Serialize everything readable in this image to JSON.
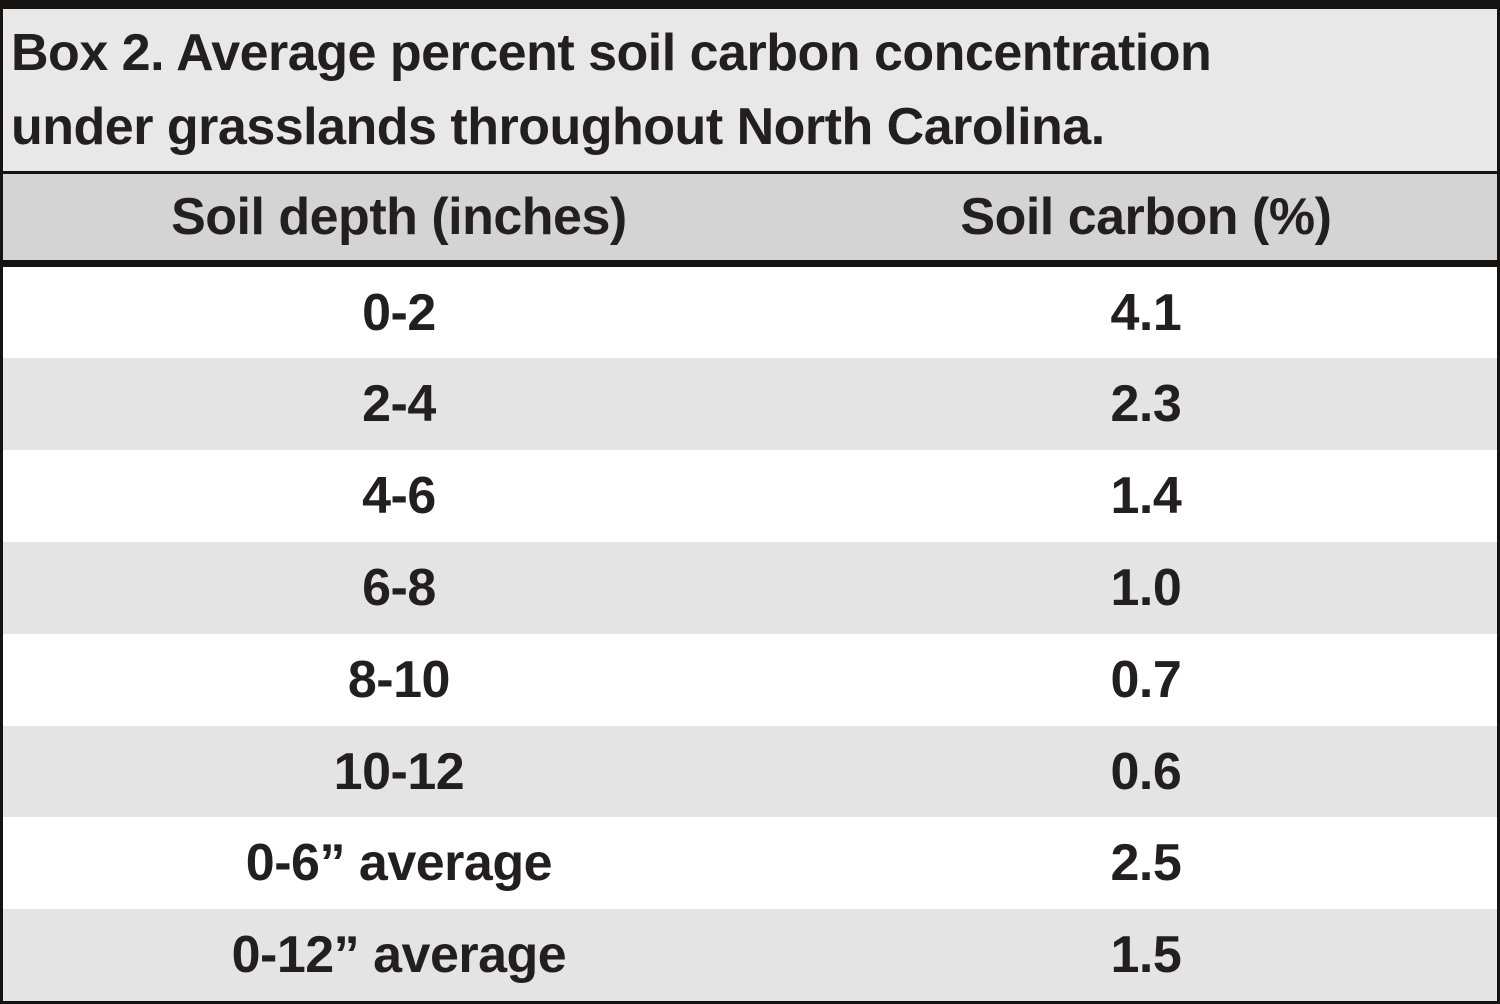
{
  "figure": {
    "title_line1": "Box 2. Average percent soil carbon concentration",
    "title_line2": "under grasslands throughout North Carolina."
  },
  "table": {
    "columns": [
      "Soil depth (inches)",
      "Soil carbon (%)"
    ],
    "rows": [
      {
        "depth": "0-2",
        "carbon": "4.1"
      },
      {
        "depth": "2-4",
        "carbon": "2.3"
      },
      {
        "depth": "4-6",
        "carbon": "1.4"
      },
      {
        "depth": "6-8",
        "carbon": "1.0"
      },
      {
        "depth": "8-10",
        "carbon": "0.7"
      },
      {
        "depth": "10-12",
        "carbon": "0.6"
      },
      {
        "depth": "0-6” average",
        "carbon": "2.5"
      },
      {
        "depth": "0-12” average",
        "carbon": "1.5"
      }
    ]
  },
  "chart_data": {
    "type": "table",
    "title": "Box 2. Average percent soil carbon concentration under grasslands throughout North Carolina.",
    "columns": [
      "Soil depth (inches)",
      "Soil carbon (%)"
    ],
    "rows": [
      [
        "0-2",
        4.1
      ],
      [
        "2-4",
        2.3
      ],
      [
        "4-6",
        1.4
      ],
      [
        "6-8",
        1.0
      ],
      [
        "8-10",
        0.7
      ],
      [
        "10-12",
        0.6
      ],
      [
        "0-6” average",
        2.5
      ],
      [
        "0-12” average",
        1.5
      ]
    ]
  },
  "colors": {
    "title_background": "#e8e8e8",
    "header_background": "#d4d4d4",
    "row_alt_background": "#e4e4e4",
    "text": "#231f20",
    "border": "#161412"
  }
}
